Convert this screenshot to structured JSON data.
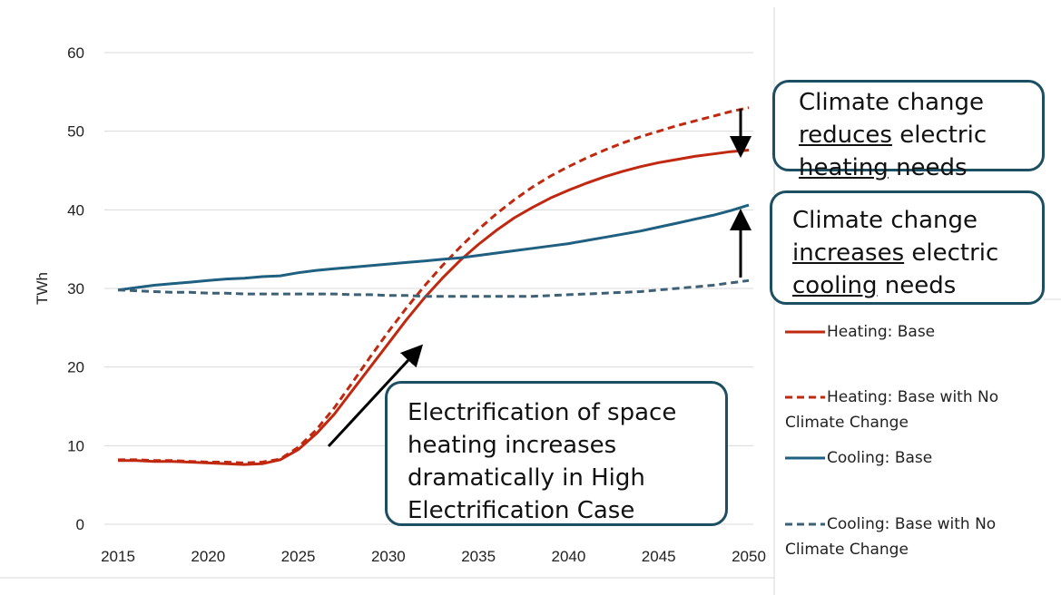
{
  "chart_data": {
    "type": "line",
    "y_label": "TWh",
    "x": [
      2015,
      2016,
      2017,
      2018,
      2019,
      2020,
      2021,
      2022,
      2023,
      2024,
      2025,
      2026,
      2027,
      2028,
      2029,
      2030,
      2031,
      2032,
      2033,
      2034,
      2035,
      2036,
      2037,
      2038,
      2039,
      2040,
      2041,
      2042,
      2043,
      2044,
      2045,
      2046,
      2047,
      2048,
      2049,
      2050
    ],
    "xlim": [
      2015,
      2050
    ],
    "xticks": [
      2015,
      2020,
      2025,
      2030,
      2035,
      2040,
      2045,
      2050
    ],
    "ylim": [
      0,
      60
    ],
    "yticks": [
      0,
      10,
      20,
      30,
      40,
      50,
      60
    ],
    "grid": true,
    "series": [
      {
        "name": "Heating: Base",
        "color": "#c0280f",
        "dashed": false,
        "values": [
          8.1,
          8.1,
          8.0,
          8.0,
          7.9,
          7.8,
          7.7,
          7.6,
          7.7,
          8.2,
          9.5,
          11.5,
          14,
          17,
          20,
          23,
          26,
          28.8,
          31.3,
          33.6,
          35.6,
          37.4,
          39,
          40.3,
          41.5,
          42.5,
          43.4,
          44.2,
          44.9,
          45.5,
          46,
          46.4,
          46.8,
          47.1,
          47.4,
          47.6
        ]
      },
      {
        "name": "Heating: Base with No Climate Change",
        "color": "#c0280f",
        "dashed": true,
        "values": [
          8.2,
          8.2,
          8.1,
          8.1,
          8.0,
          7.9,
          7.9,
          7.8,
          7.9,
          8.3,
          9.8,
          12,
          14.8,
          18,
          21.3,
          24.5,
          27.5,
          30.3,
          32.9,
          35.3,
          37.5,
          39.5,
          41.3,
          42.9,
          44.3,
          45.5,
          46.6,
          47.6,
          48.5,
          49.3,
          50,
          50.7,
          51.3,
          51.9,
          52.5,
          53
        ]
      },
      {
        "name": "Cooling: Base",
        "color": "#1f5f80",
        "dashed": false,
        "values": [
          29.8,
          30.1,
          30.4,
          30.6,
          30.8,
          31.0,
          31.2,
          31.3,
          31.5,
          31.6,
          32.0,
          32.3,
          32.5,
          32.7,
          32.9,
          33.1,
          33.3,
          33.5,
          33.7,
          33.9,
          34.2,
          34.5,
          34.8,
          35.1,
          35.4,
          35.7,
          36.1,
          36.5,
          36.9,
          37.3,
          37.8,
          38.3,
          38.8,
          39.3,
          39.9,
          40.6
        ]
      },
      {
        "name": "Cooling: Base with No Climate Change",
        "color": "#3d6075",
        "dashed": true,
        "values": [
          29.8,
          29.7,
          29.6,
          29.5,
          29.5,
          29.4,
          29.4,
          29.3,
          29.3,
          29.3,
          29.3,
          29.3,
          29.3,
          29.2,
          29.2,
          29.1,
          29.1,
          29.0,
          29.0,
          29.0,
          29.0,
          29.0,
          29.0,
          29.0,
          29.1,
          29.2,
          29.3,
          29.4,
          29.5,
          29.6,
          29.8,
          30.0,
          30.2,
          30.4,
          30.7,
          31.0
        ]
      }
    ],
    "annotations": [
      {
        "lines": [
          [
            {
              "text": "Climate change"
            }
          ],
          [
            {
              "text": "reduces",
              "underline": true
            },
            {
              "text": " electric"
            }
          ],
          [
            {
              "text": "heating",
              "underline": true
            },
            {
              "text": " needs"
            }
          ]
        ]
      },
      {
        "lines": [
          [
            {
              "text": "Climate change"
            }
          ],
          [
            {
              "text": "increases",
              "underline": true
            },
            {
              "text": " electric"
            }
          ],
          [
            {
              "text": "cooling",
              "underline": true
            },
            {
              "text": " needs"
            }
          ]
        ]
      },
      {
        "lines": [
          [
            {
              "text": "Electrification of space"
            }
          ],
          [
            {
              "text": "heating increases"
            }
          ],
          [
            {
              "text": "dramatically in High"
            }
          ],
          [
            {
              "text": "Electrification Case"
            }
          ]
        ]
      }
    ]
  }
}
